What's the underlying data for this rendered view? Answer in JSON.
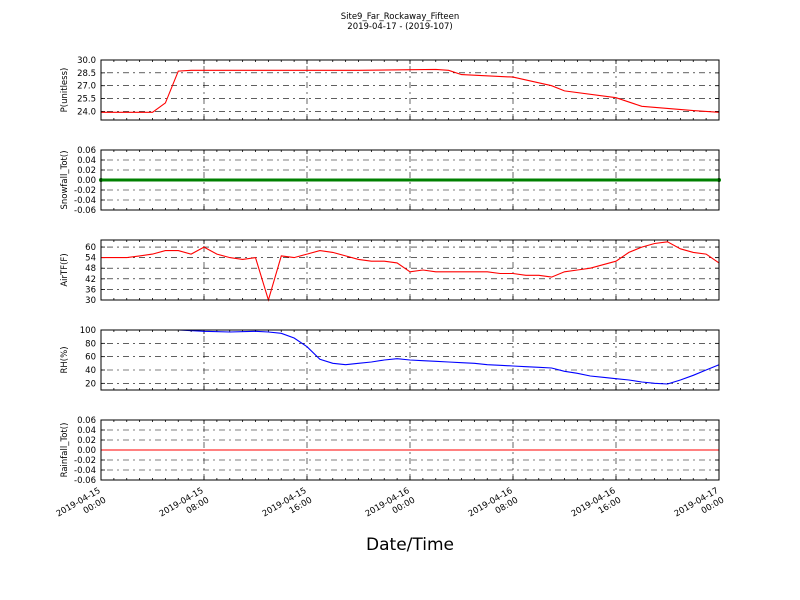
{
  "figure": {
    "title_line1": "Site9_Far_Rockaway_Fifteen",
    "title_line2": "2019-04-17 - (2019-107)",
    "xlabel": "Date/Time"
  },
  "chart_data": [
    {
      "type": "line",
      "ylabel": "P(unitless)",
      "ylim": [
        23,
        30
      ],
      "yticks": [
        "30.0",
        "28.5",
        "27.0",
        "25.5",
        "24.0"
      ],
      "ytick_values": [
        30.0,
        28.5,
        27.0,
        25.5,
        24.0
      ],
      "grid": true,
      "color": "#ff0000",
      "x_hours": [
        0,
        4,
        5,
        6,
        7,
        8,
        9,
        12,
        20,
        26,
        27,
        28,
        32,
        35,
        36,
        40,
        42,
        46,
        48
      ],
      "values": [
        23.9,
        23.9,
        25.0,
        28.7,
        28.8,
        28.8,
        28.8,
        28.8,
        28.8,
        28.9,
        28.8,
        28.3,
        28.0,
        27.0,
        26.4,
        25.6,
        24.6,
        24.1,
        23.9
      ]
    },
    {
      "type": "line",
      "ylabel": "Snowfall_Tot()",
      "ylim": [
        -0.06,
        0.06
      ],
      "yticks": [
        "0.06",
        "0.04",
        "0.02",
        "0.00",
        "-0.02",
        "-0.04",
        "-0.06"
      ],
      "ytick_values": [
        0.06,
        0.04,
        0.02,
        0.0,
        -0.02,
        -0.04,
        -0.06
      ],
      "grid": true,
      "color": "#008000",
      "x_hours": [
        0,
        48
      ],
      "values": [
        0,
        0
      ]
    },
    {
      "type": "line",
      "ylabel": "AirTF(F)",
      "ylim": [
        30,
        64
      ],
      "yticks": [
        "60",
        "54",
        "48",
        "42",
        "36",
        "30"
      ],
      "ytick_values": [
        60,
        54,
        48,
        42,
        36,
        30
      ],
      "grid": true,
      "color": "#ff0000",
      "x_hours": [
        0,
        2,
        3,
        4,
        5,
        6,
        7,
        8,
        9,
        10,
        11,
        12,
        13,
        14,
        15,
        16,
        17,
        18,
        19,
        20,
        21,
        22,
        23,
        24,
        25,
        26,
        27,
        28,
        29,
        30,
        31,
        32,
        33,
        34,
        35,
        36,
        37,
        38,
        39,
        40,
        41,
        42,
        43,
        44,
        45,
        46,
        47,
        48
      ],
      "values": [
        54,
        54,
        55,
        56,
        58,
        58,
        56,
        60,
        56,
        54,
        53,
        54,
        30,
        55,
        54,
        56,
        58,
        57,
        55,
        53,
        52,
        52,
        51,
        46,
        47,
        46,
        46,
        46,
        46,
        46,
        45,
        45,
        44,
        44,
        43,
        46,
        47,
        48,
        50,
        52,
        57,
        60,
        62,
        63,
        59,
        57,
        56,
        51
      ]
    },
    {
      "type": "line",
      "ylabel": "RH(%)",
      "ylim": [
        10,
        100
      ],
      "yticks": [
        "100",
        "80",
        "60",
        "40",
        "20"
      ],
      "ytick_values": [
        100,
        80,
        60,
        40,
        20
      ],
      "grid": true,
      "color": "#0000ff",
      "x_hours": [
        0,
        2,
        4,
        6,
        8,
        10,
        12,
        13,
        14,
        15,
        16,
        17,
        18,
        19,
        20,
        21,
        22,
        23,
        24,
        25,
        26,
        27,
        28,
        29,
        30,
        31,
        32,
        33,
        34,
        35,
        36,
        37,
        38,
        39,
        40,
        41,
        42,
        43,
        44,
        45,
        46,
        47,
        48
      ],
      "values": [
        100,
        100,
        100,
        100,
        98,
        97,
        98,
        97,
        95,
        88,
        75,
        56,
        50,
        48,
        50,
        52,
        55,
        57,
        55,
        54,
        53,
        52,
        51,
        50,
        48,
        47,
        46,
        45,
        44,
        43,
        38,
        35,
        31,
        29,
        27,
        25,
        22,
        20,
        19,
        25,
        32,
        40,
        48
      ]
    },
    {
      "type": "line",
      "ylabel": "Rainfall_Tot()",
      "ylim": [
        -0.06,
        0.06
      ],
      "yticks": [
        "0.06",
        "0.04",
        "0.02",
        "0.00",
        "-0.02",
        "-0.04",
        "-0.06"
      ],
      "ytick_values": [
        0.06,
        0.04,
        0.02,
        0.0,
        -0.02,
        -0.04,
        -0.06
      ],
      "grid": true,
      "color": "#ff0000",
      "x_hours": [
        0,
        48
      ],
      "values": [
        0,
        0
      ]
    }
  ],
  "x_axis": {
    "tick_hours": [
      0,
      8,
      16,
      24,
      32,
      40,
      48
    ],
    "tick_labels": [
      [
        "2019-04-15",
        "00:00"
      ],
      [
        "2019-04-15",
        "08:00"
      ],
      [
        "2019-04-15",
        "16:00"
      ],
      [
        "2019-04-16",
        "00:00"
      ],
      [
        "2019-04-16",
        "08:00"
      ],
      [
        "2019-04-16",
        "16:00"
      ],
      [
        "2019-04-17",
        "00:00"
      ]
    ],
    "range_hours": [
      0,
      48
    ]
  }
}
